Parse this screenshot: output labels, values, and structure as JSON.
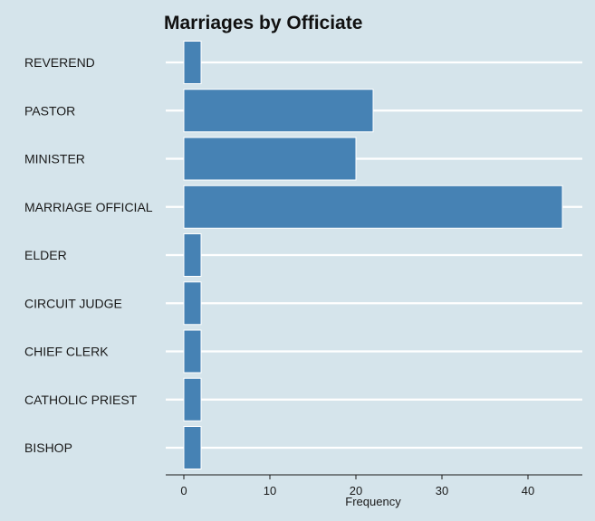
{
  "chart_data": {
    "type": "bar",
    "orientation": "horizontal",
    "title": "Marriages by Officiate",
    "xlabel": "Frequency",
    "ylabel": "",
    "categories": [
      "REVEREND",
      "PASTOR",
      "MINISTER",
      "MARRIAGE OFFICIAL",
      "ELDER",
      "CIRCUIT JUDGE",
      "CHIEF CLERK",
      "CATHOLIC PRIEST",
      "BISHOP"
    ],
    "values": [
      2,
      22,
      20,
      44,
      2,
      2,
      2,
      2,
      2
    ],
    "xlim": [
      0,
      45
    ],
    "xticks": [
      0,
      10,
      20,
      30,
      40
    ],
    "grid": "horizontal",
    "legend": "none",
    "colors": {
      "background": "#d5e4eb",
      "bar": "#4682b4",
      "bar_edge": "#ffffff",
      "grid": "#ffffff",
      "axis": "#1a1a1a"
    }
  }
}
